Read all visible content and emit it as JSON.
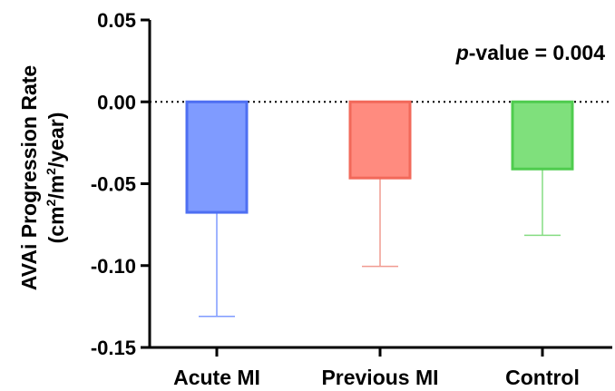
{
  "chart_data": {
    "type": "bar",
    "categories": [
      "Acute MI",
      "Previous MI",
      "Control"
    ],
    "values": [
      -0.0675,
      -0.0465,
      -0.041
    ],
    "error_low": [
      -0.131,
      -0.1005,
      -0.0815
    ],
    "colors": [
      {
        "fill": "#7f9bff",
        "stroke": "#4e6ff2",
        "error": "#7f9bff"
      },
      {
        "fill": "#ff8b7f",
        "stroke": "#f2695a",
        "error": "#f09a90"
      },
      {
        "fill": "#7fe07c",
        "stroke": "#4fcc4e",
        "error": "#85dc82"
      }
    ],
    "ylabel_line1": "AVAi Progression Rate",
    "ylabel_line2": {
      "prefix": "(cm",
      "sup1": "2",
      "mid": "/m",
      "sup2": "2",
      "suffix": "/year)"
    },
    "ylim": [
      -0.15,
      0.05
    ],
    "yticks": [
      0.05,
      0.0,
      -0.05,
      -0.1,
      -0.15
    ],
    "ytick_labels": [
      "0.05",
      "0.00",
      "-0.05",
      "-0.10",
      "-0.15"
    ],
    "zero_line": "dotted",
    "annotation": {
      "italic": "p",
      "rest": "-value = 0.004"
    }
  }
}
